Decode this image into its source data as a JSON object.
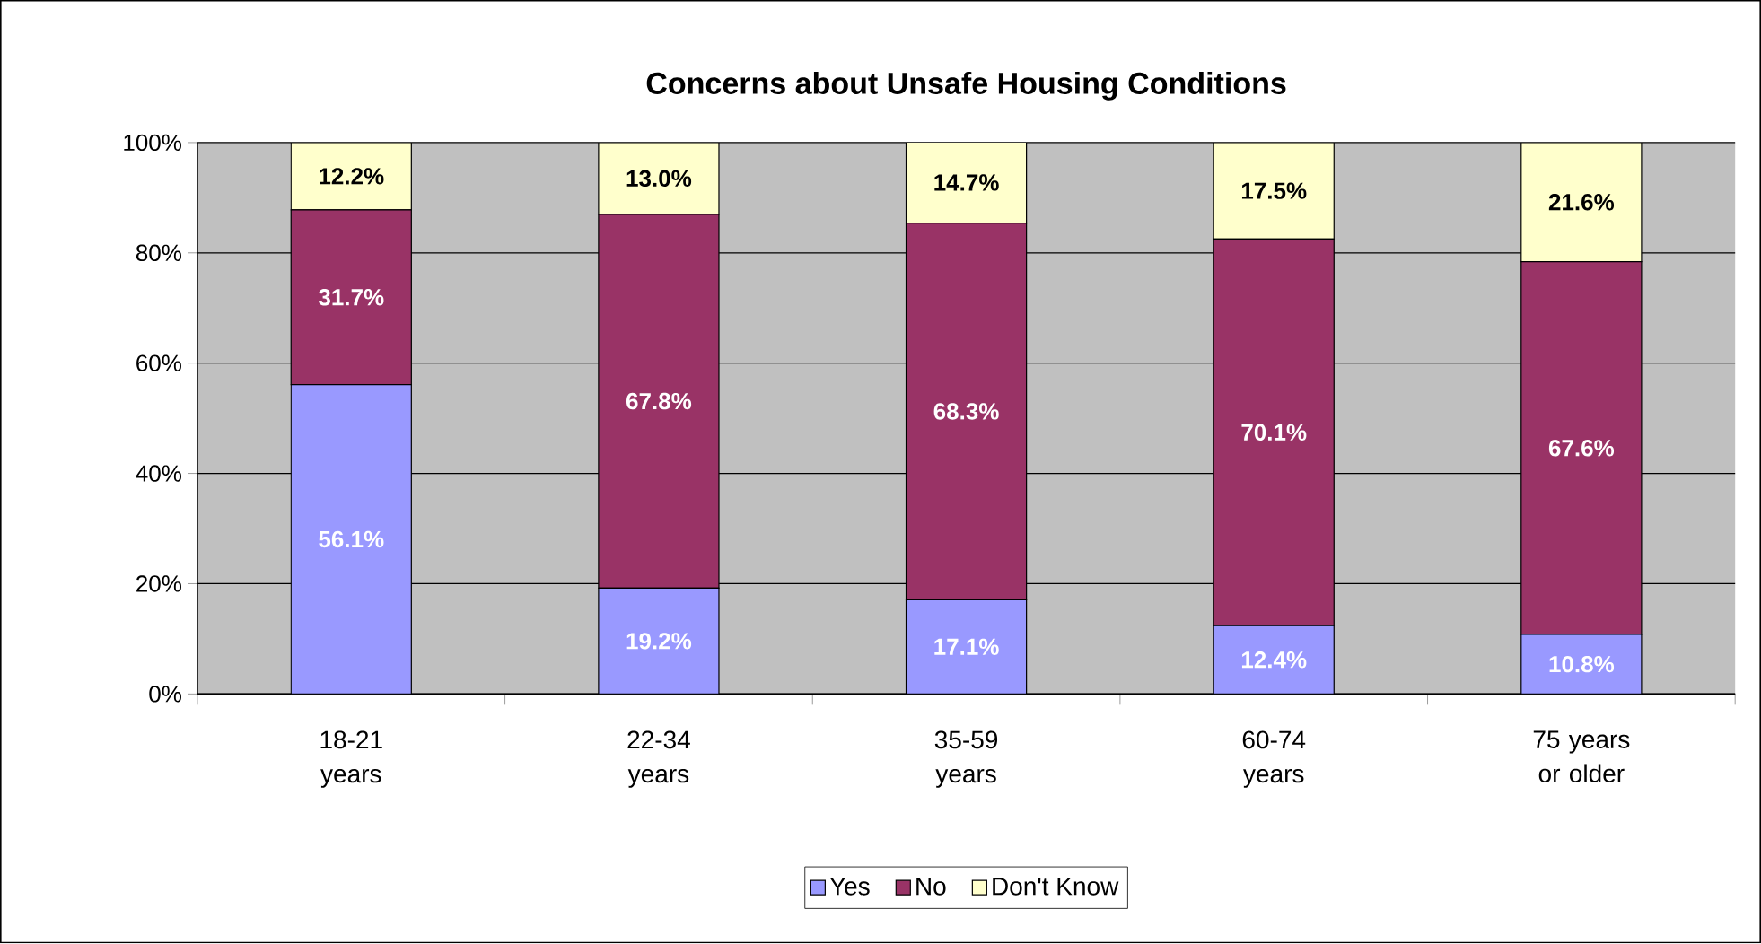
{
  "chart_data": {
    "type": "bar",
    "title": "Concerns about Unsafe Housing Conditions",
    "categories": [
      "18-21 years",
      "22-34 years",
      "35-59 years",
      "60-74 years",
      "75 years or older"
    ],
    "stacked": true,
    "series": [
      {
        "name": "Yes",
        "color": "#9999ff",
        "values": [
          56.1,
          19.2,
          17.1,
          12.4,
          10.8
        ],
        "value_labels": [
          "56.1%",
          "19.2%",
          "17.1%",
          "12.4%",
          "10.8%"
        ]
      },
      {
        "name": "No",
        "color": "#993366",
        "values": [
          31.7,
          67.8,
          68.3,
          70.1,
          67.6
        ],
        "value_labels": [
          "31.7%",
          "67.8%",
          "68.3%",
          "70.1%",
          "67.6%"
        ]
      },
      {
        "name": "Don't Know",
        "color": "#ffffcc",
        "values": [
          12.2,
          13.0,
          14.7,
          17.5,
          21.6
        ],
        "value_labels": [
          "12.2%",
          "13.0%",
          "14.7%",
          "17.5%",
          "21.6%"
        ]
      }
    ],
    "ylim": [
      0,
      100
    ],
    "yticks": [
      {
        "value": 0,
        "label": "0%"
      },
      {
        "value": 20,
        "label": "20%"
      },
      {
        "value": 40,
        "label": "40%"
      },
      {
        "value": 60,
        "label": "60%"
      },
      {
        "value": 80,
        "label": "80%"
      },
      {
        "value": 100,
        "label": "100%"
      }
    ],
    "grid": "y",
    "legend": "bottom"
  }
}
